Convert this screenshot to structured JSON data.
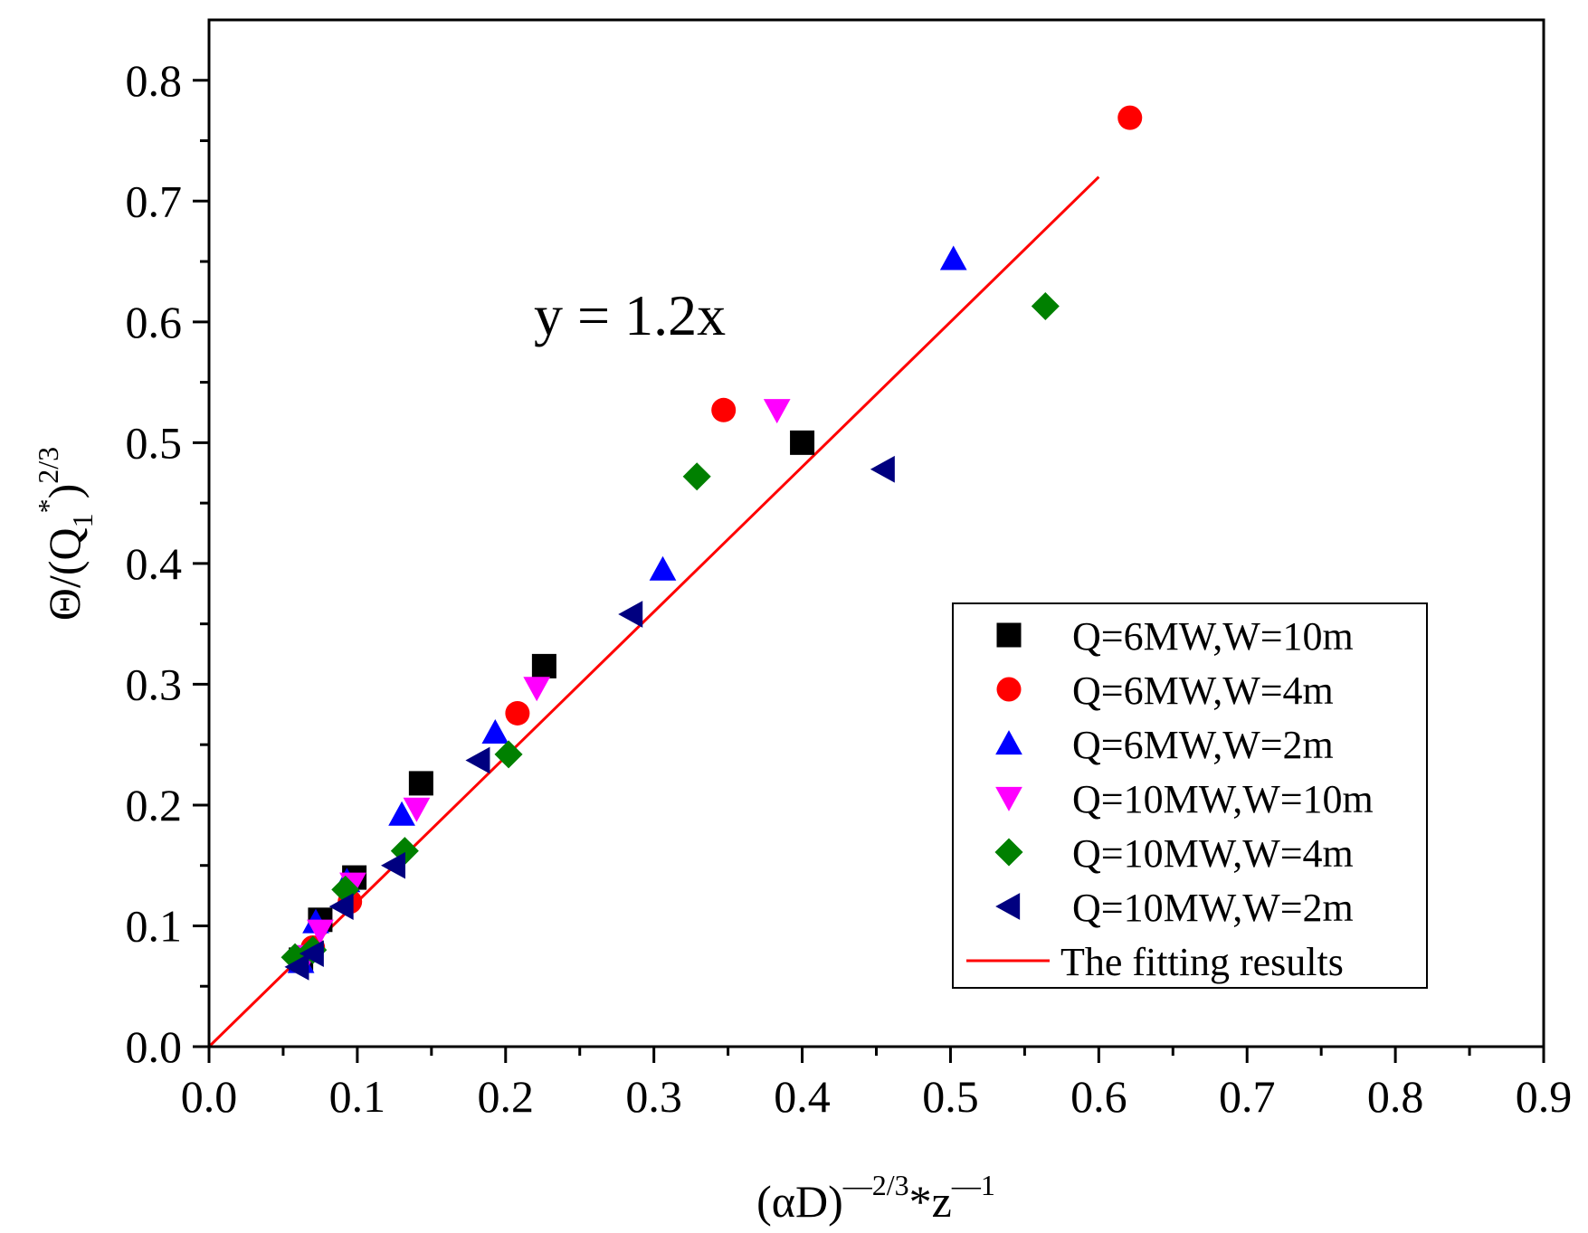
{
  "chart_data": {
    "type": "scatter",
    "title": "",
    "xlabel": {
      "base": "(αD)",
      "sup1": "—2/3",
      "mid": "*z",
      "sup2": "—1"
    },
    "ylabel": {
      "pre": "Θ/(Q",
      "sub": "1",
      "sup1": "*",
      "close": ")",
      "sup2": "2/3"
    },
    "xlim": [
      0,
      0.9
    ],
    "ylim": [
      0,
      0.85
    ],
    "x_ticks": [
      "0.0",
      "0.1",
      "0.2",
      "0.3",
      "0.4",
      "0.5",
      "0.6",
      "0.7",
      "0.8",
      "0.9"
    ],
    "y_ticks": [
      "0.0",
      "0.1",
      "0.2",
      "0.3",
      "0.4",
      "0.5",
      "0.6",
      "0.7",
      "0.8"
    ],
    "annotation": "y = 1.2x",
    "legend_position": "bottom-right",
    "series": [
      {
        "name": "Q=6MW,W=10m",
        "marker": "square",
        "color": "#000000",
        "points": [
          [
            0.062,
            0.072
          ],
          [
            0.075,
            0.105
          ],
          [
            0.098,
            0.14
          ],
          [
            0.143,
            0.218
          ],
          [
            0.226,
            0.315
          ],
          [
            0.4,
            0.5
          ]
        ]
      },
      {
        "name": "Q=6MW,W=4m",
        "marker": "circle",
        "color": "#ff0000",
        "points": [
          [
            0.07,
            0.082
          ],
          [
            0.095,
            0.12
          ],
          [
            0.208,
            0.276
          ],
          [
            0.347,
            0.527
          ],
          [
            0.621,
            0.769
          ]
        ]
      },
      {
        "name": "Q=6MW,W=2m",
        "marker": "triangle-up",
        "color": "#0000ff",
        "points": [
          [
            0.062,
            0.07
          ],
          [
            0.072,
            0.103
          ],
          [
            0.093,
            0.137
          ],
          [
            0.13,
            0.192
          ],
          [
            0.193,
            0.26
          ],
          [
            0.306,
            0.395
          ],
          [
            0.502,
            0.652
          ]
        ]
      },
      {
        "name": "Q=10MW,W=10m",
        "marker": "triangle-down",
        "color": "#ff00ff",
        "points": [
          [
            0.066,
            0.075
          ],
          [
            0.075,
            0.096
          ],
          [
            0.097,
            0.135
          ],
          [
            0.14,
            0.197
          ],
          [
            0.221,
            0.297
          ],
          [
            0.383,
            0.527
          ]
        ]
      },
      {
        "name": "Q=10MW,W=4m",
        "marker": "diamond",
        "color": "#008000",
        "points": [
          [
            0.058,
            0.074
          ],
          [
            0.07,
            0.08
          ],
          [
            0.092,
            0.13
          ],
          [
            0.132,
            0.162
          ],
          [
            0.202,
            0.242
          ],
          [
            0.329,
            0.472
          ],
          [
            0.564,
            0.613
          ]
        ]
      },
      {
        "name": "Q=10MW,W=2m",
        "marker": "triangle-left",
        "color": "#000080",
        "points": [
          [
            0.06,
            0.066
          ],
          [
            0.07,
            0.077
          ],
          [
            0.09,
            0.116
          ],
          [
            0.125,
            0.15
          ],
          [
            0.182,
            0.237
          ],
          [
            0.285,
            0.358
          ],
          [
            0.455,
            0.478
          ]
        ]
      }
    ],
    "fit": {
      "name": "The fitting results",
      "slope": 1.2,
      "x_range": [
        0,
        0.6
      ],
      "color": "#ff0000"
    }
  }
}
